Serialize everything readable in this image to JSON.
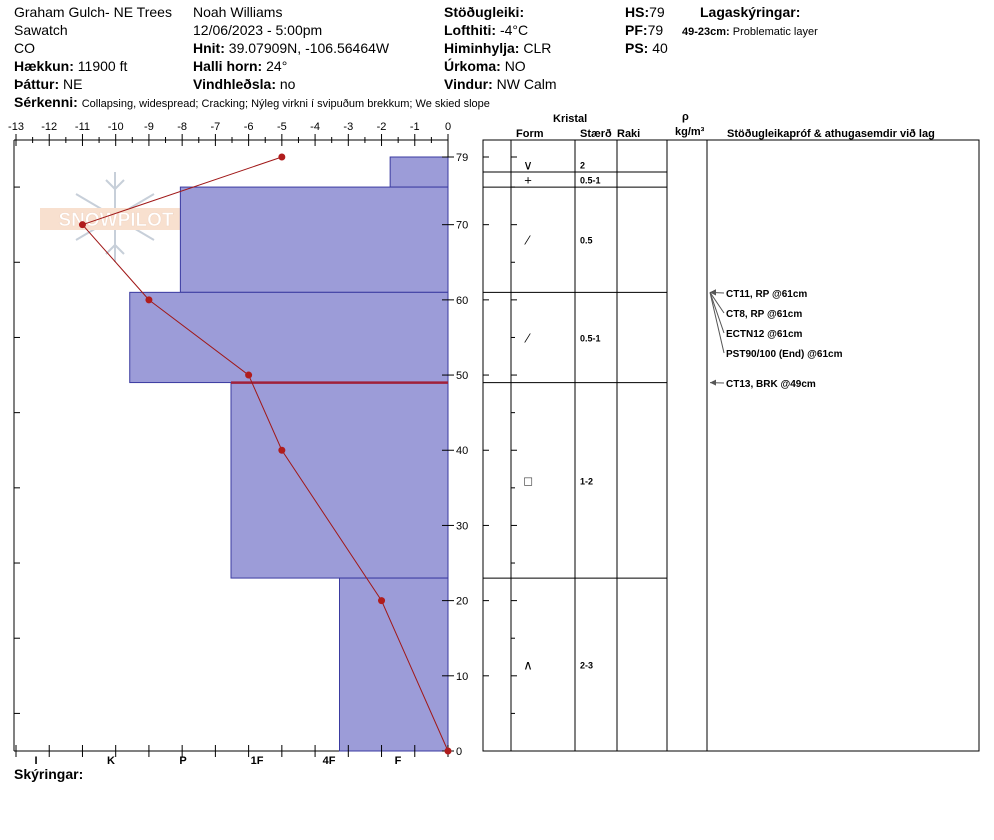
{
  "header": {
    "site": "Graham Gulch- NE Trees",
    "range": "Sawatch",
    "state": "CO",
    "elevation_label": "Hækkun:",
    "elevation_value": "11900 ft",
    "aspect_label": "Þáttur:",
    "aspect_value": "NE",
    "observer": "Noah Williams",
    "datetime": "12/06/2023 - 5:00pm",
    "coords_label": "Hnit:",
    "coords_value": "39.07909N, -106.56464W",
    "slope_label": "Halli horn:",
    "slope_value": "24°",
    "wind_loading_label": "Vindhleðsla:",
    "wind_loading_value": "no",
    "stability_label": "Stöðugleiki:",
    "stability_value": "",
    "air_temp_label": "Lofthiti:",
    "air_temp_value": "-4°C",
    "sky_label": "Himinhylja:",
    "sky_value": "CLR",
    "precip_label": "Úrkoma:",
    "precip_value": "NO",
    "wind_label": "Vindur:",
    "wind_value": "NW Calm",
    "hs_label": "HS:",
    "hs_value": "79",
    "pf_label": "PF:",
    "pf_value": "79",
    "ps_label": "PS:",
    "ps_value": "40",
    "layer_notes_label": "Lagaskýringar:",
    "layer_note_range": "49-23cm:",
    "layer_note_text": "Problematic layer",
    "features_label": "Sérkenni:",
    "features_value": "Collapsing, widespread;  Cracking;  Nýleg virkni í svipuðum brekkum;  We skied slope",
    "footer_label": "Skýringar:"
  },
  "columns": {
    "crystal": "Kristal",
    "form": "Form",
    "size": "Stærð",
    "moisture": "Raki",
    "density_symbol": "ρ",
    "density_unit": "kg/m³",
    "tests": "Stöðugleikapróf & athugasemdir við lag"
  },
  "watermark": "SNOWPILOT",
  "chart_data": {
    "type": "snow-profile",
    "temperature_axis": {
      "range": [
        -13,
        0
      ],
      "ticks": [
        -13,
        -12,
        -11,
        -10,
        -9,
        -8,
        -7,
        -6,
        -5,
        -4,
        -3,
        -2,
        -1,
        0
      ]
    },
    "depth_axis": {
      "range": [
        0,
        79
      ],
      "ticks": [
        0,
        10,
        20,
        30,
        40,
        50,
        60,
        70,
        79
      ]
    },
    "hardness_axis": {
      "labels": [
        "I",
        "K",
        "P",
        "1F",
        "4F",
        "F"
      ]
    },
    "temperature_profile": [
      {
        "depth": 79,
        "temp": -5
      },
      {
        "depth": 70,
        "temp": -11
      },
      {
        "depth": 60,
        "temp": -9
      },
      {
        "depth": 50,
        "temp": -6
      },
      {
        "depth": 40,
        "temp": -5
      },
      {
        "depth": 20,
        "temp": -2
      },
      {
        "depth": 0,
        "temp": 0
      }
    ],
    "hardness_layers": [
      {
        "top": 79,
        "bottom": 75,
        "hardness": 0.8
      },
      {
        "top": 75,
        "bottom": 61,
        "hardness": 3.7
      },
      {
        "top": 61,
        "bottom": 49,
        "hardness": 4.4
      },
      {
        "top": 49,
        "bottom": 23,
        "hardness": 3.0
      },
      {
        "top": 23,
        "bottom": 0,
        "hardness": 1.5
      }
    ],
    "weak_layer_depth": 49,
    "grain_layers": [
      {
        "top": 79,
        "bottom": 77,
        "form": "∨",
        "size": "2"
      },
      {
        "top": 77,
        "bottom": 75,
        "form": "+",
        "size": "0.5-1"
      },
      {
        "top": 75,
        "bottom": 61,
        "form": "⁄",
        "size": "0.5"
      },
      {
        "top": 61,
        "bottom": 49,
        "form": "⁄",
        "size": "0.5-1"
      },
      {
        "top": 49,
        "bottom": 23,
        "form": "□",
        "size": "1-2"
      },
      {
        "top": 23,
        "bottom": 0,
        "form": "∧",
        "size": "2-3"
      }
    ],
    "stability_tests": [
      {
        "depth": 61,
        "text": "CT11, RP @61cm"
      },
      {
        "depth": 61,
        "text": "CT8, RP @61cm"
      },
      {
        "depth": 61,
        "text": "ECTN12 @61cm"
      },
      {
        "depth": 61,
        "text": "PST90/100 (End) @61cm"
      },
      {
        "depth": 49,
        "text": "CT13, BRK @49cm"
      }
    ]
  }
}
